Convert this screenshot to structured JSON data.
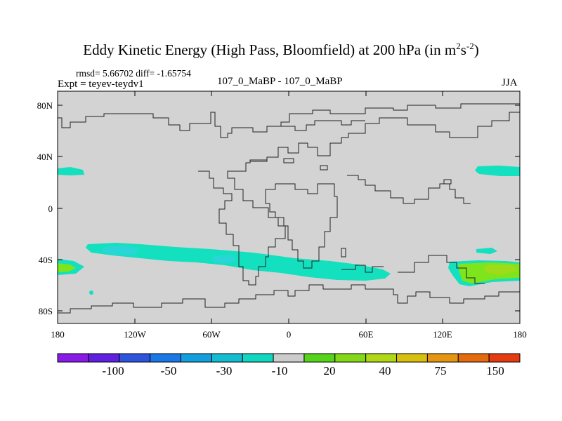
{
  "title": {
    "main": "Eddy Kinetic Energy (High Pass, Bloomfield) at 200 hPa (in m",
    "sup1": "2",
    "s": "s",
    "sup2": "-2",
    "close": ")"
  },
  "stats": "rmsd= 5.66702 diff= -1.65754",
  "expt": "Expt = teyev-teydv1",
  "subtitle": "107_0_MaBP - 107_0_MaBP",
  "season": "JJA",
  "y_ticks": [
    "80N",
    "40N",
    "0",
    "40S",
    "80S"
  ],
  "x_ticks": [
    "180",
    "120W",
    "60W",
    "0",
    "60E",
    "120E",
    "180"
  ],
  "colorbar": {
    "colors": [
      "#8a1ae6",
      "#6020e0",
      "#2f54dc",
      "#1a78e6",
      "#139fdd",
      "#14bcd2",
      "#10d8c0",
      "#cccccc",
      "#56d41c",
      "#84d818",
      "#b0d814",
      "#d8c00e",
      "#e49610",
      "#e46a0e",
      "#e43c10"
    ],
    "labels": [
      "-100",
      "-50",
      "-30",
      "-10",
      "20",
      "40",
      "75",
      "150"
    ]
  },
  "colors": {
    "background": "#d3d3d3",
    "teal": "#13e0bf",
    "cyan_light": "#29dfd9",
    "green": "#7ee41c",
    "green_yellow": "#9edc1a"
  }
}
